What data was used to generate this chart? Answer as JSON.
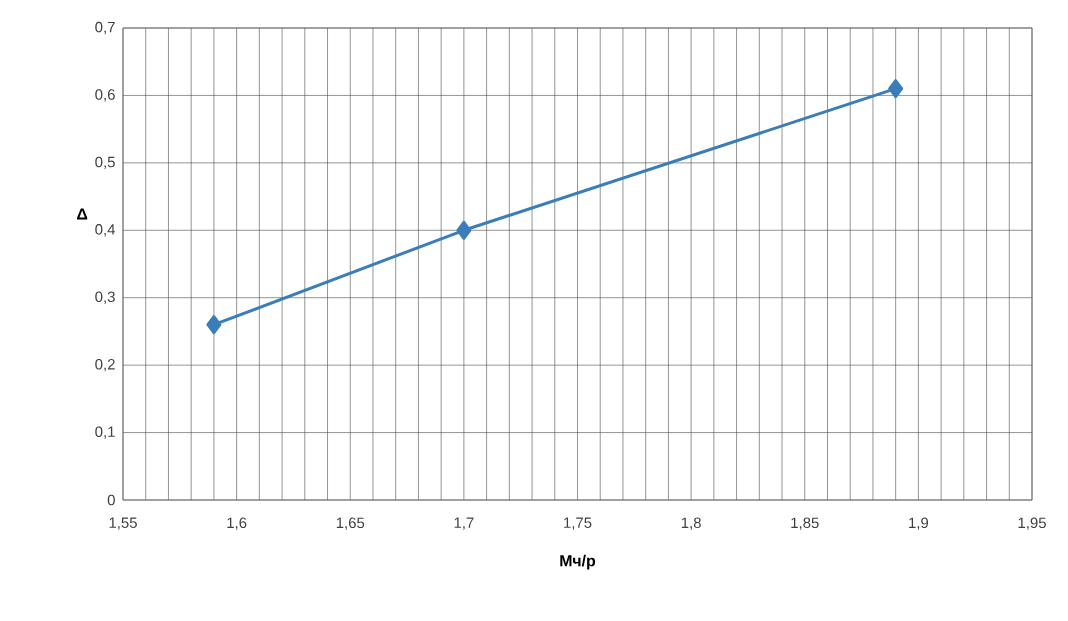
{
  "chart_data": {
    "type": "line",
    "xlabel": "Мч/р",
    "ylabel": "Δ",
    "x": [
      1.59,
      1.7,
      1.89
    ],
    "series": [
      {
        "color": "#3b7db8",
        "values": [
          0.26,
          0.4,
          0.61
        ]
      }
    ],
    "xlim": [
      1.55,
      1.95
    ],
    "xticks": [
      {
        "value": 1.55,
        "label": "1,55"
      },
      {
        "value": 1.6,
        "label": "1,6"
      },
      {
        "value": 1.65,
        "label": "1,65"
      },
      {
        "value": 1.7,
        "label": "1,7"
      },
      {
        "value": 1.75,
        "label": "1,75"
      },
      {
        "value": 1.8,
        "label": "1,8"
      },
      {
        "value": 1.85,
        "label": "1,85"
      },
      {
        "value": 1.9,
        "label": "1,9"
      },
      {
        "value": 1.95,
        "label": "1,95"
      }
    ],
    "ylim": [
      0,
      0.7
    ],
    "yticks": [
      0,
      {
        "value": 0.1,
        "label": "0,1"
      },
      {
        "value": 0.2,
        "label": "0,2"
      },
      {
        "value": 0.3,
        "label": "0,3"
      },
      {
        "value": 0.4,
        "label": "0,4"
      },
      {
        "value": 0.5,
        "label": "0,5"
      },
      {
        "value": 0.6,
        "label": "0,6"
      },
      {
        "value": 0.7,
        "label": "0,7"
      }
    ],
    "grid": true,
    "marker": "diamond",
    "line_style": "solid"
  }
}
